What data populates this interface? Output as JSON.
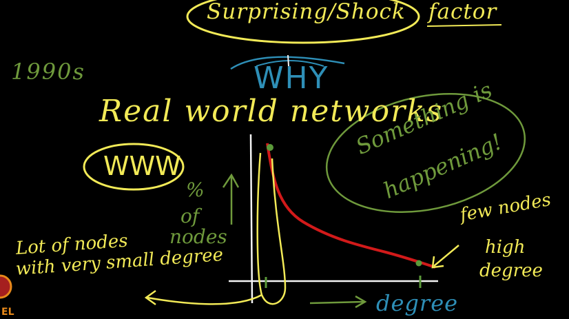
{
  "colors": {
    "yellow": "#f2ea57",
    "green": "#6f9a3c",
    "blue": "#2e8fb7",
    "red": "#d21a1a",
    "white": "#f4f4f4",
    "dot_green": "#5b9a3a",
    "orange": "#e8891a",
    "logo_red": "#a51f1f"
  },
  "header": {
    "title_circled": "Surprising/Shock",
    "title_tail": "factor"
  },
  "notes": {
    "era": "1990s",
    "why": "WHY",
    "heading": "Real world networks",
    "www": "WWW",
    "something": "Something is",
    "happening": "happening!",
    "ylabel_pct": "%",
    "ylabel_of": "of",
    "ylabel_nodes": "nodes",
    "xlabel": "degree",
    "left_note_line1": "Lot of nodes",
    "left_note_line2": "with very small degree",
    "right_note_line1": "few nodes",
    "right_note_line2": "high",
    "right_note_line3": "degree"
  },
  "logo": {
    "text": "EL"
  }
}
